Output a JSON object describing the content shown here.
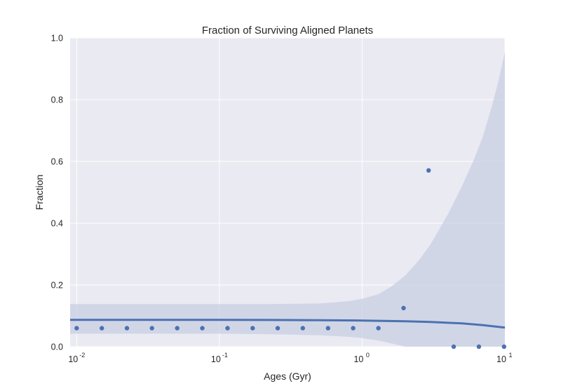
{
  "chart_data": {
    "type": "scatter",
    "title": "Fraction of Surviving Aligned Planets",
    "xlabel": "Ages (Gyr)",
    "ylabel": "Fraction",
    "xscale": "log",
    "xlim": [
      0.009,
      10
    ],
    "ylim": [
      0.0,
      1.0
    ],
    "grid": true,
    "x_ticks": [
      {
        "base": "10",
        "exp": "-2",
        "value": 0.01
      },
      {
        "base": "10",
        "exp": "-1",
        "value": 0.1
      },
      {
        "base": "10",
        "exp": "0",
        "value": 1
      },
      {
        "base": "10",
        "exp": "1",
        "value": 10
      }
    ],
    "y_ticks": [
      "0.0",
      "0.2",
      "0.4",
      "0.6",
      "0.8",
      "1.0"
    ],
    "points": [
      {
        "x": 0.01,
        "y": 0.06
      },
      {
        "x": 0.015,
        "y": 0.06
      },
      {
        "x": 0.0225,
        "y": 0.06
      },
      {
        "x": 0.0337,
        "y": 0.06
      },
      {
        "x": 0.0506,
        "y": 0.06
      },
      {
        "x": 0.0759,
        "y": 0.06
      },
      {
        "x": 0.114,
        "y": 0.06
      },
      {
        "x": 0.171,
        "y": 0.06
      },
      {
        "x": 0.256,
        "y": 0.06
      },
      {
        "x": 0.384,
        "y": 0.06
      },
      {
        "x": 0.577,
        "y": 0.06
      },
      {
        "x": 0.865,
        "y": 0.06
      },
      {
        "x": 1.3,
        "y": 0.06
      },
      {
        "x": 1.95,
        "y": 0.125
      },
      {
        "x": 2.92,
        "y": 0.571
      },
      {
        "x": 4.38,
        "y": 0.0
      },
      {
        "x": 6.57,
        "y": 0.0
      },
      {
        "x": 9.86,
        "y": 0.0
      }
    ],
    "fit_line": {
      "x": [
        0.009,
        0.02,
        0.05,
        0.1,
        0.2,
        0.5,
        1.0,
        2.0,
        3.0,
        5.0,
        7.0,
        10.0
      ],
      "y": [
        0.087,
        0.087,
        0.087,
        0.0868,
        0.0865,
        0.0858,
        0.0848,
        0.0825,
        0.08,
        0.0755,
        0.07,
        0.062
      ]
    },
    "confidence_band": {
      "x": [
        0.009,
        0.05,
        0.1,
        0.2,
        0.5,
        0.8,
        1.0,
        1.3,
        1.6,
        2.0,
        2.5,
        3.0,
        4.0,
        5.0,
        6.0,
        7.0,
        8.0,
        9.0,
        10.0
      ],
      "upper": [
        0.138,
        0.138,
        0.138,
        0.138,
        0.14,
        0.147,
        0.155,
        0.17,
        0.195,
        0.23,
        0.28,
        0.33,
        0.43,
        0.52,
        0.6,
        0.68,
        0.77,
        0.86,
        0.955
      ],
      "lower": [
        0.042,
        0.042,
        0.042,
        0.041,
        0.037,
        0.032,
        0.028,
        0.02,
        0.011,
        0.0,
        0.0,
        0.0,
        0.0,
        0.0,
        0.0,
        0.0,
        0.0,
        0.0,
        0.0
      ]
    },
    "colors": {
      "background": "#eaeaf2",
      "grid": "#ffffff",
      "points": "#4c72b0",
      "line": "#4c72b0",
      "band": "#c8cfe3"
    }
  }
}
